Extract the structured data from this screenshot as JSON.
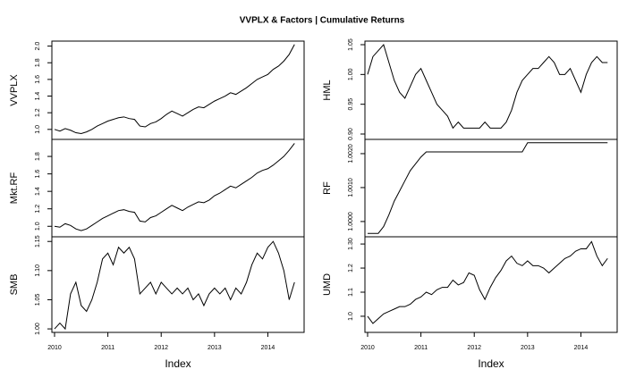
{
  "chart_data": {
    "type": "line",
    "title": "VVPLX & Factors | Cumulative Returns",
    "color": "#000000",
    "x": [
      2010.0,
      2010.1,
      2010.2,
      2010.3,
      2010.4,
      2010.5,
      2010.6,
      2010.7,
      2010.8,
      2010.9,
      2011.0,
      2011.1,
      2011.2,
      2011.3,
      2011.4,
      2011.5,
      2011.6,
      2011.7,
      2011.8,
      2011.9,
      2012.0,
      2012.1,
      2012.2,
      2012.3,
      2012.4,
      2012.5,
      2012.6,
      2012.7,
      2012.8,
      2012.9,
      2013.0,
      2013.1,
      2013.2,
      2013.3,
      2013.4,
      2013.5,
      2013.6,
      2013.7,
      2013.8,
      2013.9,
      2014.0,
      2014.1,
      2014.2,
      2014.3,
      2014.4,
      2014.5
    ],
    "xlim": [
      2009.95,
      2014.68
    ],
    "xticks": [
      2010,
      2011,
      2012,
      2013,
      2014
    ],
    "xlabel": "Index",
    "panels": [
      {
        "ylabel": "VVPLX",
        "ylim": [
          0.88,
          2.06
        ],
        "yticks": [
          {
            "value": 1.0,
            "label": "1.0"
          },
          {
            "value": 1.2,
            "label": "1.2"
          },
          {
            "value": 1.4,
            "label": "1.4"
          },
          {
            "value": 1.6,
            "label": "1.6"
          },
          {
            "value": 1.8,
            "label": "1.8"
          },
          {
            "value": 2.0,
            "label": "2.0"
          }
        ],
        "values": [
          1.0,
          0.98,
          1.01,
          0.99,
          0.96,
          0.95,
          0.97,
          1.0,
          1.04,
          1.07,
          1.1,
          1.12,
          1.14,
          1.15,
          1.13,
          1.12,
          1.04,
          1.03,
          1.07,
          1.09,
          1.13,
          1.18,
          1.22,
          1.19,
          1.16,
          1.2,
          1.24,
          1.27,
          1.26,
          1.3,
          1.34,
          1.37,
          1.4,
          1.44,
          1.42,
          1.46,
          1.5,
          1.55,
          1.6,
          1.63,
          1.66,
          1.72,
          1.76,
          1.82,
          1.9,
          2.02
        ]
      },
      {
        "ylabel": "Mkt.RF",
        "ylim": [
          0.88,
          1.995
        ],
        "yticks": [
          {
            "value": 1.0,
            "label": "1.0"
          },
          {
            "value": 1.2,
            "label": "1.2"
          },
          {
            "value": 1.4,
            "label": "1.4"
          },
          {
            "value": 1.6,
            "label": "1.6"
          },
          {
            "value": 1.8,
            "label": "1.8"
          }
        ],
        "values": [
          1.0,
          0.99,
          1.03,
          1.01,
          0.97,
          0.95,
          0.97,
          1.01,
          1.05,
          1.09,
          1.12,
          1.15,
          1.18,
          1.19,
          1.17,
          1.16,
          1.06,
          1.05,
          1.1,
          1.12,
          1.16,
          1.2,
          1.24,
          1.21,
          1.18,
          1.22,
          1.25,
          1.28,
          1.27,
          1.3,
          1.35,
          1.38,
          1.42,
          1.46,
          1.44,
          1.48,
          1.52,
          1.56,
          1.61,
          1.64,
          1.66,
          1.7,
          1.75,
          1.8,
          1.87,
          1.95
        ]
      },
      {
        "ylabel": "SMB",
        "ylim": [
          0.994,
          1.158
        ],
        "yticks": [
          {
            "value": 1.0,
            "label": "1.00"
          },
          {
            "value": 1.05,
            "label": "1.05"
          },
          {
            "value": 1.1,
            "label": "1.10"
          },
          {
            "value": 1.15,
            "label": "1.15"
          }
        ],
        "values": [
          1.0,
          1.01,
          1.0,
          1.06,
          1.08,
          1.04,
          1.03,
          1.05,
          1.08,
          1.12,
          1.13,
          1.11,
          1.14,
          1.13,
          1.14,
          1.12,
          1.06,
          1.07,
          1.08,
          1.06,
          1.08,
          1.07,
          1.06,
          1.07,
          1.06,
          1.07,
          1.05,
          1.06,
          1.04,
          1.06,
          1.07,
          1.06,
          1.07,
          1.05,
          1.07,
          1.06,
          1.08,
          1.11,
          1.13,
          1.12,
          1.14,
          1.15,
          1.13,
          1.1,
          1.05,
          1.08
        ]
      },
      {
        "ylabel": "HML",
        "ylim": [
          0.891,
          1.056
        ],
        "yticks": [
          {
            "value": 0.9,
            "label": "0.90"
          },
          {
            "value": 0.95,
            "label": "0.95"
          },
          {
            "value": 1.0,
            "label": "1.00"
          },
          {
            "value": 1.05,
            "label": "1.05"
          }
        ],
        "values": [
          1.0,
          1.03,
          1.04,
          1.05,
          1.02,
          0.99,
          0.97,
          0.96,
          0.98,
          1.0,
          1.01,
          0.99,
          0.97,
          0.95,
          0.94,
          0.93,
          0.91,
          0.92,
          0.91,
          0.91,
          0.91,
          0.91,
          0.92,
          0.91,
          0.91,
          0.91,
          0.92,
          0.94,
          0.97,
          0.99,
          1.0,
          1.01,
          1.01,
          1.02,
          1.03,
          1.02,
          1.0,
          1.0,
          1.01,
          0.99,
          0.97,
          1.0,
          1.02,
          1.03,
          1.02,
          1.02
        ]
      },
      {
        "ylabel": "RF",
        "ylim": [
          0.99955,
          1.00242
        ],
        "yticks": [
          {
            "value": 1.0,
            "label": "1.0000"
          },
          {
            "value": 1.001,
            "label": "1.0010"
          },
          {
            "value": 1.002,
            "label": "1.0020"
          }
        ],
        "values": [
          0.99965,
          0.99965,
          0.99965,
          0.99985,
          1.0002,
          1.0006,
          1.0009,
          1.0012,
          1.0015,
          1.0017,
          1.0019,
          1.00205,
          1.00205,
          1.00205,
          1.00205,
          1.00205,
          1.00205,
          1.00205,
          1.00205,
          1.00205,
          1.00205,
          1.00205,
          1.00205,
          1.00205,
          1.00205,
          1.00205,
          1.00205,
          1.00205,
          1.00205,
          1.00205,
          1.00232,
          1.00232,
          1.00232,
          1.00232,
          1.00232,
          1.00232,
          1.00232,
          1.00232,
          1.00232,
          1.00232,
          1.00232,
          1.00232,
          1.00232,
          1.00232,
          1.00232,
          1.00232
        ]
      },
      {
        "ylabel": "UMD",
        "ylim": [
          0.933,
          1.33
        ],
        "yticks": [
          {
            "value": 1.0,
            "label": "1.0"
          },
          {
            "value": 1.1,
            "label": "1.1"
          },
          {
            "value": 1.2,
            "label": "1.2"
          },
          {
            "value": 1.3,
            "label": "1.30"
          }
        ],
        "values": [
          1.0,
          0.97,
          0.99,
          1.01,
          1.02,
          1.03,
          1.04,
          1.04,
          1.05,
          1.07,
          1.08,
          1.1,
          1.09,
          1.11,
          1.12,
          1.12,
          1.15,
          1.13,
          1.14,
          1.18,
          1.17,
          1.11,
          1.07,
          1.12,
          1.16,
          1.19,
          1.23,
          1.25,
          1.22,
          1.21,
          1.23,
          1.21,
          1.21,
          1.2,
          1.18,
          1.2,
          1.22,
          1.24,
          1.25,
          1.27,
          1.28,
          1.28,
          1.31,
          1.25,
          1.21,
          1.24
        ]
      }
    ]
  }
}
